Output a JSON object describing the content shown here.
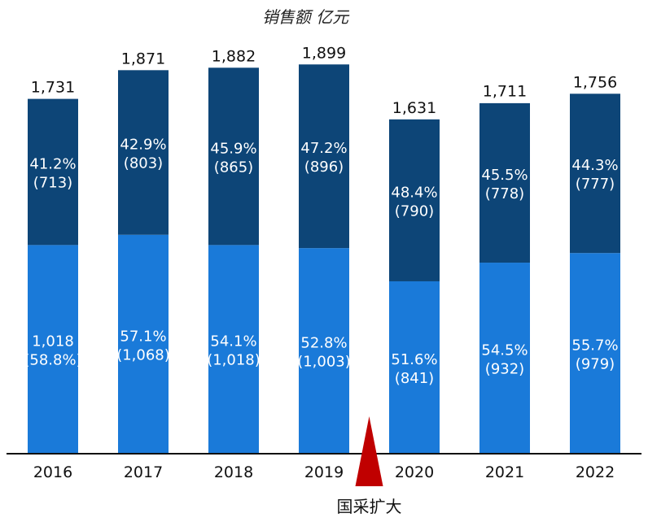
{
  "chart_data": {
    "type": "bar",
    "stacked": true,
    "ylabel": "销售额 亿元",
    "categories": [
      "2016",
      "2017",
      "2018",
      "2019",
      "2020",
      "2021",
      "2022"
    ],
    "totals": [
      1731,
      1871,
      1882,
      1899,
      1631,
      1711,
      1756
    ],
    "total_labels": [
      "1,731",
      "1,871",
      "1,882",
      "1,899",
      "1,631",
      "1,711",
      "1,756"
    ],
    "series": [
      {
        "values": [
          1018,
          1068,
          1018,
          1003,
          841,
          932,
          979
        ],
        "labels": [
          [
            "1,018",
            "(58.8%)"
          ],
          [
            "57.1%",
            "(1,068)"
          ],
          [
            "54.1%",
            "(1,018)"
          ],
          [
            "52.8%",
            "(1,003)"
          ],
          [
            "51.6%",
            "(841)"
          ],
          [
            "54.5%",
            "(932)"
          ],
          [
            "55.7%",
            "(979)"
          ]
        ],
        "color": "#1a7ad9"
      },
      {
        "values": [
          713,
          803,
          865,
          896,
          790,
          778,
          777
        ],
        "labels": [
          [
            "41.2%",
            "(713)"
          ],
          [
            "42.9%",
            "(803)"
          ],
          [
            "45.9%",
            "(865)"
          ],
          [
            "47.2%",
            "(896)"
          ],
          [
            "48.4%",
            "(790)"
          ],
          [
            "45.5%",
            "(778)"
          ],
          [
            "44.3%",
            "(777)"
          ]
        ],
        "color": "#0d4577"
      }
    ],
    "ylim": [
      0,
      1900
    ],
    "grid": false,
    "annotation": {
      "text": "国采扩大",
      "position": "between 2019 and 2020",
      "marker": "red-triangle",
      "color": "#c00000"
    }
  }
}
